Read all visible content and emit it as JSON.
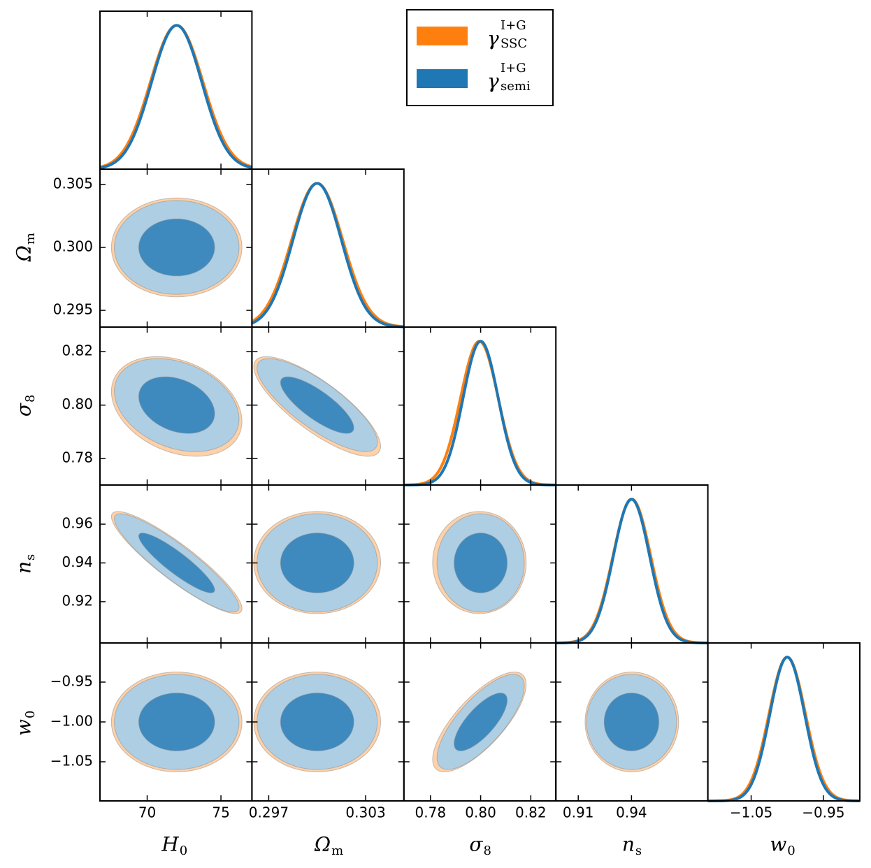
{
  "chart_data": {
    "type": "corner",
    "parameters": [
      {
        "label": "H",
        "label_sub": "0",
        "xlim": [
          66.8,
          77.1
        ],
        "xticks": [
          70,
          75
        ]
      },
      {
        "label": "Ω",
        "label_sub": "m",
        "xlim": [
          0.29596,
          0.30537
        ],
        "xticks": [
          0.297,
          0.303
        ],
        "ylim": [
          0.29367,
          0.30622
        ],
        "yticks": [
          0.295,
          {
            "value": 0.3,
            "label": "0.300"
          },
          0.305
        ]
      },
      {
        "label": "σ",
        "label_sub": "8",
        "xlim": [
          0.7694,
          0.83
        ],
        "xticks": [
          0.78,
          {
            "value": 0.8,
            "label": "0.80"
          },
          0.82
        ],
        "ylim": [
          0.7701,
          0.8292
        ],
        "yticks": [
          0.78,
          {
            "value": 0.8,
            "label": "0.80"
          },
          0.82
        ]
      },
      {
        "label": "n",
        "label_sub": "s",
        "xlim": [
          0.8974,
          0.983
        ],
        "xticks": [
          0.91,
          0.94
        ],
        "ylim": [
          0.8987,
          0.9802
        ],
        "yticks": [
          0.92,
          0.94,
          0.96
        ]
      },
      {
        "label": "w",
        "label_sub": "0",
        "xlim": [
          -1.11,
          -0.8995
        ],
        "xticks": [
          {
            "value": -1.05,
            "label": "−1.05"
          },
          {
            "value": -0.95,
            "label": "−0.95"
          }
        ],
        "ylim": [
          -1.0991,
          -0.9009
        ],
        "yticks": [
          {
            "value": -1.05,
            "label": "−1.05"
          },
          {
            "value": -1,
            "label": "−1.00"
          },
          {
            "value": -0.95,
            "label": "−0.95"
          }
        ]
      }
    ],
    "series": [
      {
        "name": "γ",
        "name_sup": "I+G",
        "name_sub": "SSC",
        "color": "#ff7f0e",
        "means": [
          72,
          0.3,
          0.7995,
          0.9402,
          -1.0
        ],
        "sigmas": [
          1.78,
          0.00158,
          0.0075,
          0.0106,
          0.0252
        ],
        "correlations": [
          [
            1,
            0,
            -0.3,
            -0.9,
            0
          ],
          [
            0,
            1,
            -0.8,
            0,
            0
          ],
          [
            -0.3,
            -0.8,
            1,
            0,
            0.75
          ],
          [
            -0.9,
            0,
            0,
            1,
            0
          ],
          [
            0,
            0,
            0.75,
            0,
            1
          ]
        ]
      },
      {
        "name": "γ",
        "name_sup": "I+G",
        "name_sub": "semi",
        "color": "#1f77b4",
        "means": [
          72,
          0.3,
          0.8,
          0.94,
          -1.0
        ],
        "sigmas": [
          1.7,
          0.0015,
          0.007,
          0.0102,
          0.024
        ],
        "correlations": [
          [
            1,
            0,
            -0.3,
            -0.9,
            0
          ],
          [
            0,
            1,
            -0.8,
            0,
            0
          ],
          [
            -0.3,
            -0.8,
            1,
            0,
            0.75
          ],
          [
            -0.9,
            0,
            0,
            1,
            0
          ],
          [
            0,
            0,
            0.75,
            0,
            1
          ]
        ]
      }
    ]
  }
}
